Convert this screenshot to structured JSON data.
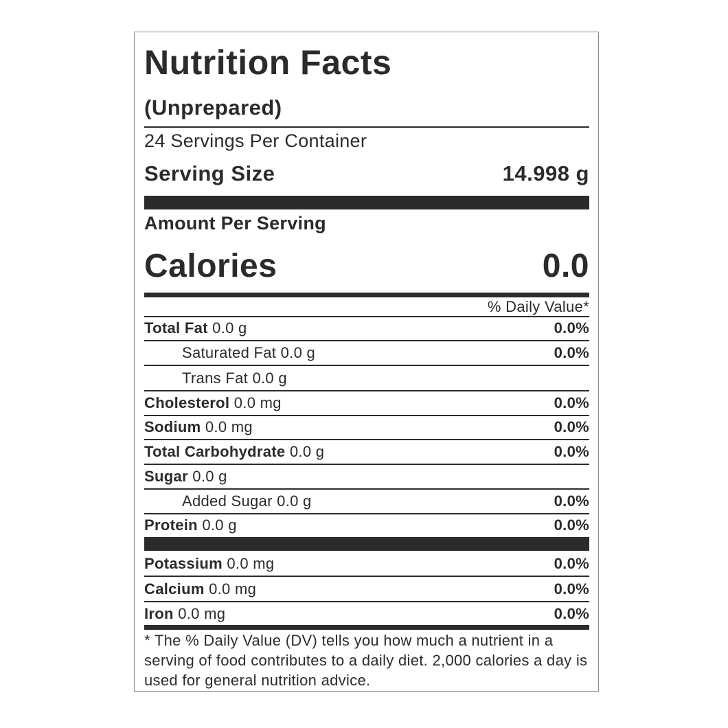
{
  "label": {
    "title": "Nutrition Facts",
    "subtitle": "(Unprepared)",
    "servings_per_container": "24 Servings Per Container",
    "serving_size_label": "Serving Size",
    "serving_size_value": "14.998 g",
    "amount_per_serving": "Amount Per Serving",
    "calories_label": "Calories",
    "calories_value": "0.0",
    "daily_value_header": "% Daily Value*",
    "nutrients": [
      {
        "name": "Total Fat",
        "amount": "0.0 g",
        "dv": "0.0%"
      },
      {
        "name": "Saturated Fat",
        "amount": "0.0 g",
        "dv": "0.0%"
      },
      {
        "name": "Trans Fat",
        "amount": "0.0 g",
        "dv": ""
      },
      {
        "name": "Cholesterol",
        "amount": "0.0 mg",
        "dv": "0.0%"
      },
      {
        "name": "Sodium",
        "amount": "0.0 mg",
        "dv": "0.0%"
      },
      {
        "name": "Total Carbohydrate",
        "amount": "0.0 g",
        "dv": "0.0%"
      },
      {
        "name": "Sugar",
        "amount": "0.0 g",
        "dv": ""
      },
      {
        "name": "Added Sugar",
        "amount": "0.0 g",
        "dv": "0.0%"
      },
      {
        "name": "Protein",
        "amount": "0.0 g",
        "dv": "0.0%"
      }
    ],
    "minerals": [
      {
        "name": "Potassium",
        "amount": "0.0 mg",
        "dv": "0.0%"
      },
      {
        "name": "Calcium",
        "amount": "0.0 mg",
        "dv": "0.0%"
      },
      {
        "name": "Iron",
        "amount": "0.0 mg",
        "dv": "0.0%"
      }
    ],
    "footnote": "* The % Daily Value (DV) tells you how much a nutrient in a serving of food contributes to a daily diet. 2,000 calories a day is used for general nutrition advice."
  }
}
